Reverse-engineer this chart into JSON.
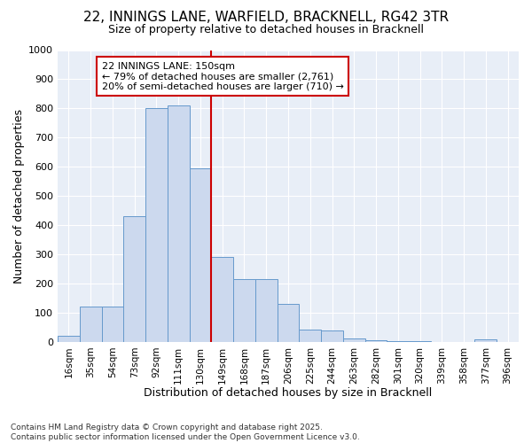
{
  "title_line1": "22, INNINGS LANE, WARFIELD, BRACKNELL, RG42 3TR",
  "title_line2": "Size of property relative to detached houses in Bracknell",
  "xlabel": "Distribution of detached houses by size in Bracknell",
  "ylabel": "Number of detached properties",
  "bin_labels": [
    "16sqm",
    "35sqm",
    "54sqm",
    "73sqm",
    "92sqm",
    "111sqm",
    "130sqm",
    "149sqm",
    "168sqm",
    "187sqm",
    "206sqm",
    "225sqm",
    "244sqm",
    "263sqm",
    "282sqm",
    "301sqm",
    "320sqm",
    "339sqm",
    "358sqm",
    "377sqm",
    "396sqm"
  ],
  "bar_values": [
    20,
    120,
    120,
    430,
    800,
    810,
    595,
    290,
    215,
    215,
    130,
    42,
    38,
    12,
    5,
    3,
    2,
    1,
    0,
    8,
    0
  ],
  "bar_color": "#ccd9ee",
  "bar_edge_color": "#6699cc",
  "vline_color": "#cc0000",
  "vline_pos": 7,
  "annotation_text": "22 INNINGS LANE: 150sqm\n← 79% of detached houses are smaller (2,761)\n20% of semi-detached houses are larger (710) →",
  "annotation_box_facecolor": "#ffffff",
  "annotation_box_edgecolor": "#cc0000",
  "ylim": [
    0,
    1000
  ],
  "yticks": [
    0,
    100,
    200,
    300,
    400,
    500,
    600,
    700,
    800,
    900,
    1000
  ],
  "footnote": "Contains HM Land Registry data © Crown copyright and database right 2025.\nContains public sector information licensed under the Open Government Licence v3.0.",
  "fig_bg_color": "#ffffff",
  "axes_bg_color": "#e8eef7",
  "grid_color": "#ffffff",
  "title_fontsize": 11,
  "subtitle_fontsize": 9,
  "axis_label_fontsize": 9,
  "tick_fontsize": 8,
  "annot_fontsize": 8
}
